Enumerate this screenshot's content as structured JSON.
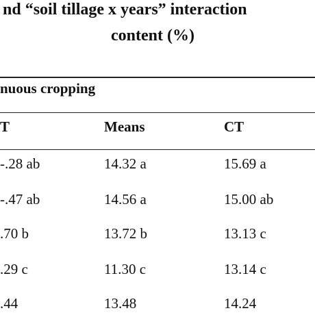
{
  "title": {
    "line1": "nd “soil tillage x years” interaction",
    "line2": "content (%)"
  },
  "table": {
    "group_header": "nuous cropping",
    "columns": [
      "T",
      "Means",
      "CT"
    ],
    "rows": [
      [
        "-.28 ab",
        "14.32 a",
        "15.69 a"
      ],
      [
        "-.47 ab",
        "14.56 a",
        "15.00 ab"
      ],
      ".70 b",
      ".29 c",
      ".44"
    ],
    "body": [
      [
        "-.28 ab",
        "14.32 a",
        "15.69 a"
      ],
      [
        "-.47 ab",
        "14.56 a",
        "15.00 ab"
      ],
      [
        ".70 b",
        "13.72 b",
        "13.13 c"
      ],
      [
        ".29 c",
        "11.30 c",
        "13.14 c"
      ],
      [
        ".44",
        "13.48",
        "14.24"
      ]
    ]
  }
}
